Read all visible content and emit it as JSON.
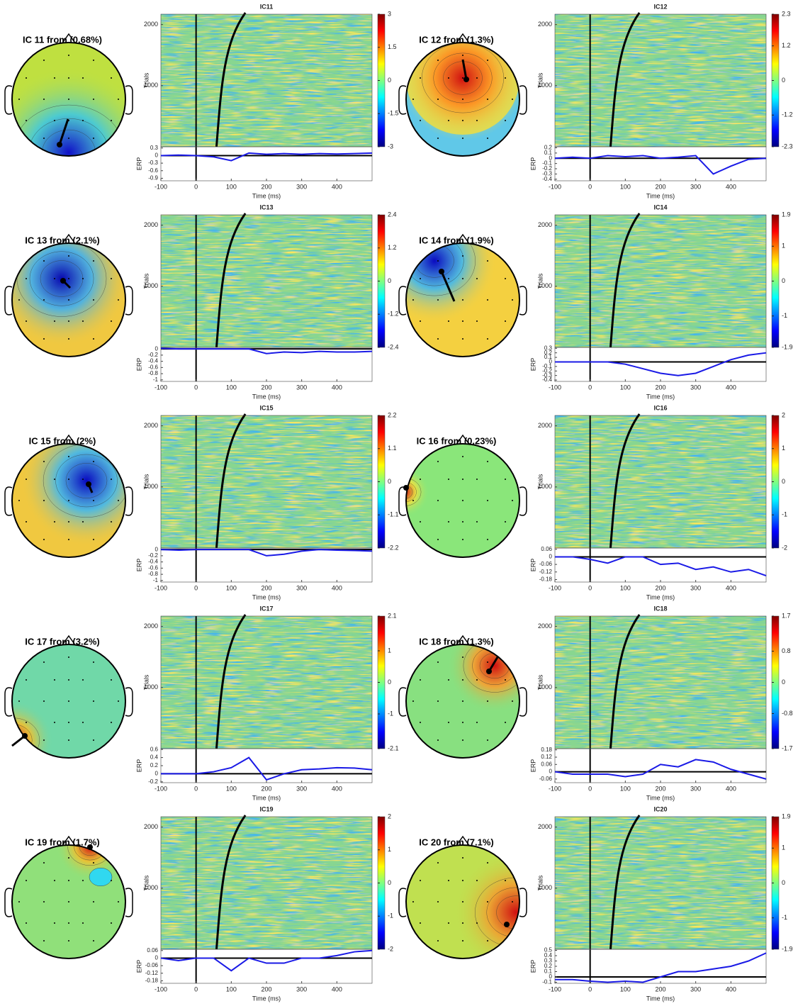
{
  "chart_data": [
    {
      "type": "erpimage",
      "topo_title": "IC 11 from (0.68%)",
      "title": "IC11",
      "ylabel": "Trials",
      "ylim": [
        0,
        2170
      ],
      "yticks": [
        1000,
        2000
      ],
      "clim": [
        -3,
        3
      ],
      "cticks": [
        3,
        1.5,
        0,
        -1.5,
        -3
      ],
      "erp_label": "ERP",
      "erp_ylim": [
        -1.0,
        0.35
      ],
      "erp_yticks": [
        0.3,
        0,
        -0.3,
        -0.6,
        -0.9
      ],
      "xlabel": "Time (ms)",
      "xlim": [
        -100,
        500
      ],
      "xticks": [
        -100,
        0,
        100,
        200,
        300,
        400
      ],
      "x": [
        -100,
        -50,
        0,
        50,
        100,
        150,
        200,
        250,
        300,
        350,
        400,
        450,
        500
      ],
      "values": [
        0.0,
        0.02,
        0.0,
        -0.05,
        -0.2,
        0.1,
        0.05,
        0.08,
        0.05,
        0.08,
        0.06,
        0.08,
        0.1
      ],
      "color": "#1a1ae6"
    },
    {
      "type": "erpimage",
      "topo_title": "IC 12 from (1.3%)",
      "title": "IC12",
      "ylabel": "Trials",
      "ylim": [
        0,
        2170
      ],
      "yticks": [
        1000,
        2000
      ],
      "clim": [
        -2.3,
        2.3
      ],
      "cticks": [
        2.3,
        1.2,
        0,
        -1.2,
        -2.3
      ],
      "erp_label": "ERP",
      "erp_ylim": [
        -0.43,
        0.22
      ],
      "erp_yticks": [
        0.2,
        0.1,
        0,
        -0.1,
        -0.2,
        -0.3,
        -0.4
      ],
      "xlabel": "Time (ms)",
      "xlim": [
        -100,
        500
      ],
      "xticks": [
        -100,
        0,
        100,
        200,
        300,
        400
      ],
      "x": [
        -100,
        -50,
        0,
        50,
        100,
        150,
        200,
        250,
        300,
        350,
        400,
        450,
        500
      ],
      "values": [
        0.0,
        0.02,
        0.0,
        0.05,
        0.03,
        0.05,
        0.0,
        0.02,
        0.05,
        -0.3,
        -0.15,
        -0.02,
        0.0
      ],
      "color": "#1a1ae6"
    },
    {
      "type": "erpimage",
      "topo_title": "IC 13 from (2.1%)",
      "title": "IC13",
      "ylabel": "Trials",
      "ylim": [
        0,
        2170
      ],
      "yticks": [
        1000,
        2000
      ],
      "clim": [
        -2.4,
        2.4
      ],
      "cticks": [
        2.4,
        1.2,
        0,
        -1.2,
        -2.4
      ],
      "erp_label": "ERP",
      "erp_ylim": [
        -1.05,
        0.05
      ],
      "erp_yticks": [
        0,
        -0.2,
        -0.4,
        -0.6,
        -0.8,
        -1
      ],
      "xlabel": "Time (ms)",
      "xlim": [
        -100,
        500
      ],
      "xticks": [
        -100,
        0,
        100,
        200,
        300,
        400
      ],
      "x": [
        -100,
        -50,
        0,
        50,
        100,
        150,
        200,
        250,
        300,
        350,
        400,
        450,
        500
      ],
      "values": [
        0.02,
        0.0,
        0.0,
        0.0,
        0.0,
        0.0,
        -0.15,
        -0.1,
        -0.12,
        -0.08,
        -0.1,
        -0.1,
        -0.08
      ],
      "color": "#1a1ae6"
    },
    {
      "type": "erpimage",
      "topo_title": "IC 14 from (1.9%)",
      "title": "IC14",
      "ylabel": "Trials",
      "ylim": [
        0,
        2170
      ],
      "yticks": [
        1000,
        2000
      ],
      "clim": [
        -1.9,
        1.9
      ],
      "cticks": [
        1.9,
        1,
        0,
        -1,
        -1.9
      ],
      "erp_label": "ERP",
      "erp_ylim": [
        -0.43,
        0.32
      ],
      "erp_yticks": [
        0.3,
        0.2,
        0.1,
        0,
        -0.1,
        -0.2,
        -0.3,
        -0.4
      ],
      "xlabel": "Time (ms)",
      "xlim": [
        -100,
        500
      ],
      "xticks": [
        -100,
        0,
        100,
        200,
        300,
        400
      ],
      "x": [
        -100,
        -50,
        0,
        50,
        100,
        150,
        200,
        250,
        300,
        350,
        400,
        450,
        500
      ],
      "values": [
        0.0,
        0.0,
        0.0,
        0.0,
        -0.05,
        -0.15,
        -0.25,
        -0.3,
        -0.25,
        -0.1,
        0.05,
        0.15,
        0.2
      ],
      "color": "#1a1ae6"
    },
    {
      "type": "erpimage",
      "topo_title": "IC 15 from (2%)",
      "title": "IC15",
      "ylabel": "Trials",
      "ylim": [
        0,
        2170
      ],
      "yticks": [
        1000,
        2000
      ],
      "clim": [
        -2.2,
        2.2
      ],
      "cticks": [
        2.2,
        1.1,
        0,
        -1.1,
        -2.2
      ],
      "erp_label": "ERP",
      "erp_ylim": [
        -1.05,
        0.05
      ],
      "erp_yticks": [
        0,
        -0.2,
        -0.4,
        -0.6,
        -0.8,
        -1
      ],
      "xlabel": "Time (ms)",
      "xlim": [
        -100,
        500
      ],
      "xticks": [
        -100,
        0,
        100,
        200,
        300,
        400
      ],
      "x": [
        -100,
        -50,
        0,
        50,
        100,
        150,
        200,
        250,
        300,
        350,
        400,
        450,
        500
      ],
      "values": [
        0.0,
        -0.02,
        0.0,
        0.0,
        0.0,
        0.0,
        -0.2,
        -0.15,
        -0.05,
        0.0,
        -0.02,
        -0.03,
        -0.05
      ],
      "color": "#1a1ae6"
    },
    {
      "type": "erpimage",
      "topo_title": "IC 16 from (0.23%)",
      "title": "IC16",
      "ylabel": "Trials",
      "ylim": [
        0,
        2170
      ],
      "yticks": [
        1000,
        2000
      ],
      "clim": [
        -2,
        2
      ],
      "cticks": [
        2,
        1,
        0,
        -1,
        -2
      ],
      "erp_label": "ERP",
      "erp_ylim": [
        -0.2,
        0.07
      ],
      "erp_yticks": [
        0.06,
        0,
        -0.06,
        -0.12,
        -0.18
      ],
      "xlabel": "Time (ms)",
      "xlim": [
        -100,
        500
      ],
      "xticks": [
        -100,
        0,
        100,
        200,
        300,
        400
      ],
      "x": [
        -100,
        -50,
        0,
        50,
        100,
        150,
        200,
        250,
        300,
        350,
        400,
        450,
        500
      ],
      "values": [
        0.0,
        0.0,
        -0.02,
        -0.05,
        0.0,
        0.0,
        -0.06,
        -0.05,
        -0.1,
        -0.08,
        -0.12,
        -0.1,
        -0.15
      ],
      "color": "#1a1ae6"
    },
    {
      "type": "erpimage",
      "topo_title": "IC 17 from (3.2%)",
      "title": "IC17",
      "ylabel": "Trials",
      "ylim": [
        0,
        2170
      ],
      "yticks": [
        1000,
        2000
      ],
      "clim": [
        -2.1,
        2.1
      ],
      "cticks": [
        2.1,
        1,
        0,
        -1,
        -2.1
      ],
      "erp_label": "ERP",
      "erp_ylim": [
        -0.22,
        0.62
      ],
      "erp_yticks": [
        0.6,
        0.4,
        0.2,
        0,
        -0.2
      ],
      "xlabel": "Time (ms)",
      "xlim": [
        -100,
        500
      ],
      "xticks": [
        -100,
        0,
        100,
        200,
        300,
        400
      ],
      "x": [
        -100,
        -50,
        0,
        50,
        100,
        150,
        200,
        250,
        300,
        350,
        400,
        450,
        500
      ],
      "values": [
        0.0,
        0.0,
        0.0,
        0.05,
        0.15,
        0.4,
        -0.15,
        0.0,
        0.1,
        0.12,
        0.15,
        0.14,
        0.1
      ],
      "color": "#1a1ae6"
    },
    {
      "type": "erpimage",
      "topo_title": "IC 18 from (1.3%)",
      "title": "IC18",
      "ylabel": "Trials",
      "ylim": [
        0,
        2170
      ],
      "yticks": [
        1000,
        2000
      ],
      "clim": [
        -1.7,
        1.7
      ],
      "cticks": [
        1.7,
        0.8,
        0,
        -0.8,
        -1.7
      ],
      "erp_label": "ERP",
      "erp_ylim": [
        -0.09,
        0.19
      ],
      "erp_yticks": [
        0.18,
        0.12,
        0.06,
        0,
        -0.06
      ],
      "xlabel": "Time (ms)",
      "xlim": [
        -100,
        500
      ],
      "xticks": [
        -100,
        0,
        100,
        200,
        300,
        400
      ],
      "x": [
        -100,
        -50,
        0,
        50,
        100,
        150,
        200,
        250,
        300,
        350,
        400,
        450,
        500
      ],
      "values": [
        0.0,
        -0.02,
        -0.02,
        -0.02,
        -0.04,
        -0.02,
        0.06,
        0.04,
        0.1,
        0.08,
        0.02,
        -0.02,
        -0.06
      ],
      "color": "#1a1ae6"
    },
    {
      "type": "erpimage",
      "topo_title": "IC 19 from (1.7%)",
      "title": "IC19",
      "ylabel": "Trials",
      "ylim": [
        0,
        2170
      ],
      "yticks": [
        1000,
        2000
      ],
      "clim": [
        -2,
        2
      ],
      "cticks": [
        2,
        1,
        0,
        -1,
        -2
      ],
      "erp_label": "ERP",
      "erp_ylim": [
        -0.2,
        0.07
      ],
      "erp_yticks": [
        0.06,
        0,
        -0.06,
        -0.12,
        -0.18
      ],
      "xlabel": "Time (ms)",
      "xlim": [
        -100,
        500
      ],
      "xticks": [
        -100,
        0,
        100,
        200,
        300,
        400
      ],
      "x": [
        -100,
        -50,
        0,
        50,
        100,
        150,
        200,
        250,
        300,
        350,
        400,
        450,
        500
      ],
      "values": [
        0.0,
        -0.02,
        0.0,
        0.0,
        -0.1,
        0.0,
        -0.04,
        -0.04,
        0.0,
        0.0,
        0.02,
        0.05,
        0.06
      ],
      "color": "#1a1ae6"
    },
    {
      "type": "erpimage",
      "topo_title": "IC 20 from (7.1%)",
      "title": "IC20",
      "ylabel": "Trials",
      "ylim": [
        0,
        2170
      ],
      "yticks": [
        1000,
        2000
      ],
      "clim": [
        -1.9,
        1.9
      ],
      "cticks": [
        1.9,
        1,
        0,
        -1,
        -1.9
      ],
      "erp_label": "ERP",
      "erp_ylim": [
        -0.12,
        0.52
      ],
      "erp_yticks": [
        0.5,
        0.4,
        0.3,
        0.2,
        0.1,
        0,
        -0.1
      ],
      "xlabel": "Time (ms)",
      "xlim": [
        -100,
        500
      ],
      "xticks": [
        -100,
        0,
        100,
        200,
        300,
        400
      ],
      "x": [
        -100,
        -50,
        0,
        50,
        100,
        150,
        200,
        250,
        300,
        350,
        400,
        450,
        500
      ],
      "values": [
        -0.05,
        -0.05,
        -0.08,
        -0.1,
        -0.08,
        -0.1,
        0.0,
        0.1,
        0.1,
        0.15,
        0.2,
        0.3,
        0.45
      ],
      "color": "#1a1ae6"
    }
  ]
}
